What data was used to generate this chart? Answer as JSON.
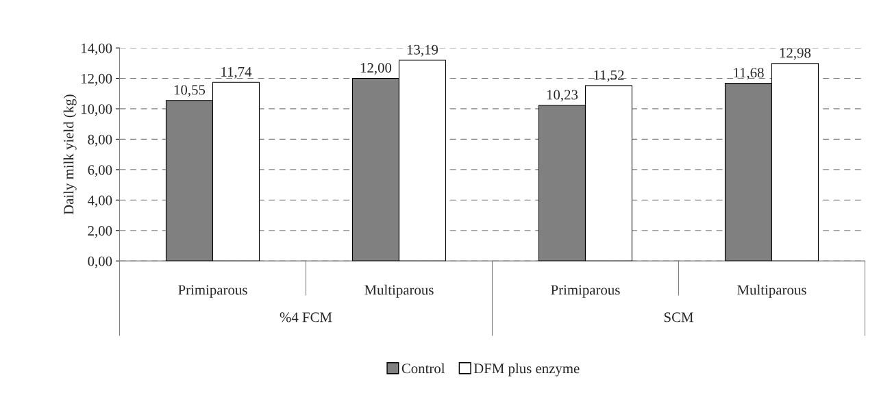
{
  "chart_data": {
    "type": "bar",
    "ylabel": "Daily milk yield (kg)",
    "categories": [
      "Primiparous",
      "Multiparous",
      "Primiparous",
      "Multiparous"
    ],
    "series": [
      {
        "name": "Control",
        "color": "#808080",
        "values": [
          10.55,
          12.0,
          10.23,
          11.68
        ],
        "value_labels": [
          "10,55",
          "12,00",
          "10,23",
          "11,68"
        ]
      },
      {
        "name": "DFM plus enzyme",
        "color": "#ffffff",
        "values": [
          11.74,
          13.19,
          11.52,
          12.98
        ],
        "value_labels": [
          "11,74",
          "13,19",
          "11,52",
          "12,98"
        ]
      }
    ],
    "ylim": [
      0,
      14
    ],
    "yticks": [
      {
        "value": 0,
        "label": "0,00"
      },
      {
        "value": 2,
        "label": "2,00"
      },
      {
        "value": 4,
        "label": "4,00"
      },
      {
        "value": 6,
        "label": "6,00"
      },
      {
        "value": 8,
        "label": "8,00"
      },
      {
        "value": 10,
        "label": "10,00"
      },
      {
        "value": 12,
        "label": "12,00"
      },
      {
        "value": 14,
        "label": "14,00"
      }
    ],
    "annotations": [
      "%4 FCM",
      "SCM"
    ],
    "grid": "y",
    "legend": "bottom"
  }
}
